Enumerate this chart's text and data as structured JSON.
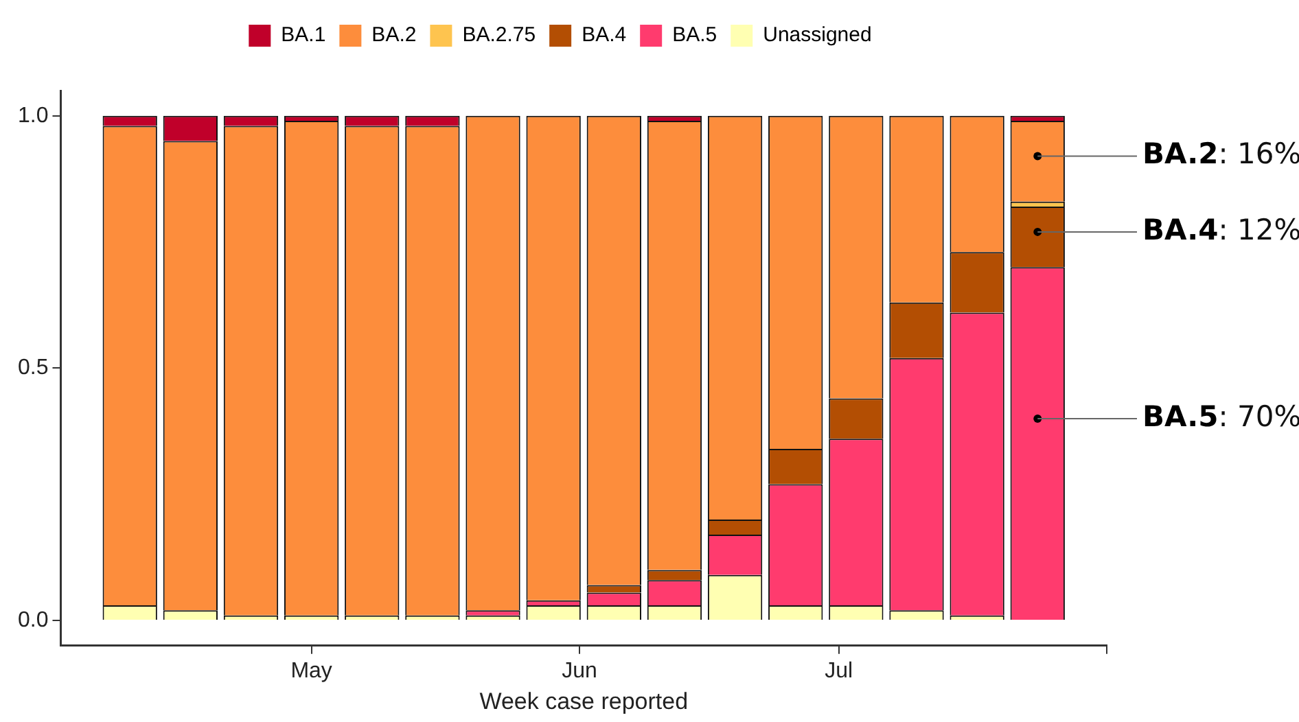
{
  "chart_data": {
    "type": "bar",
    "stacked": true,
    "xlabel": "Week case reported",
    "x": [
      "--04-10",
      "--04-17",
      "--04-24",
      "--05-01",
      "--05-08",
      "--05-15",
      "--05-22",
      "--05-29",
      "--06-05",
      "--06-12",
      "--06-19",
      "--06-26",
      "--07-03",
      "--07-10",
      "--07-17",
      "--07-24"
    ],
    "series": [
      {
        "name": "Unassigned",
        "color": "#ffffb2",
        "values": [
          0.03,
          0.02,
          0.01,
          0.01,
          0.01,
          0.01,
          0.01,
          0.03,
          0.03,
          0.03,
          0.09,
          0.03,
          0.03,
          0.02,
          0.01,
          0
        ]
      },
      {
        "name": "BA.5",
        "color": "#ff3b6e",
        "values": [
          0,
          0,
          0,
          0,
          0,
          0,
          0.01,
          0.01,
          0.025,
          0.05,
          0.08,
          0.24,
          0.33,
          0.5,
          0.6,
          0.7
        ]
      },
      {
        "name": "BA.4",
        "color": "#b34e03",
        "values": [
          0,
          0,
          0,
          0,
          0,
          0,
          0,
          0,
          0.015,
          0.02,
          0.03,
          0.07,
          0.08,
          0.11,
          0.12,
          0.12
        ]
      },
      {
        "name": "BA.2.75",
        "color": "#fec44f",
        "values": [
          0,
          0,
          0,
          0,
          0,
          0,
          0,
          0,
          0,
          0,
          0,
          0,
          0,
          0,
          0,
          0.01
        ]
      },
      {
        "name": "BA.2",
        "color": "#fd8d3c",
        "values": [
          0.95,
          0.93,
          0.97,
          0.98,
          0.97,
          0.97,
          0.98,
          0.96,
          0.93,
          0.89,
          0.8,
          0.66,
          0.56,
          0.37,
          0.27,
          0.16
        ]
      },
      {
        "name": "BA.1",
        "color": "#c0002a",
        "values": [
          0.02,
          0.05,
          0.02,
          0.01,
          0.02,
          0.02,
          0,
          0,
          0,
          0.01,
          0,
          0,
          0,
          0,
          0,
          0.01
        ]
      }
    ],
    "xlim": [
      "--04-02",
      "--08-01"
    ],
    "xticks": [
      {
        "value": "--05-01",
        "label": "May"
      },
      {
        "value": "--06-01",
        "label": "Jun"
      },
      {
        "value": "--07-01",
        "label": "Jul"
      },
      {
        "value": "--08-01",
        "label": null
      }
    ],
    "ylim": [
      -0.05,
      1.05
    ],
    "yticks": [
      {
        "value": 0,
        "label": "0.0"
      },
      0.5,
      {
        "value": 1,
        "label": "1.0"
      }
    ],
    "grid": false,
    "legend": "top",
    "annotations": [
      {
        "text": "BA.2: 16%",
        "x": "--07-24",
        "y": 0.92
      },
      {
        "text": "BA.4: 12%",
        "x": "--07-24",
        "y": 0.77
      },
      {
        "text": "BA.5: 70%",
        "x": "--07-24",
        "y": 0.4
      }
    ]
  }
}
